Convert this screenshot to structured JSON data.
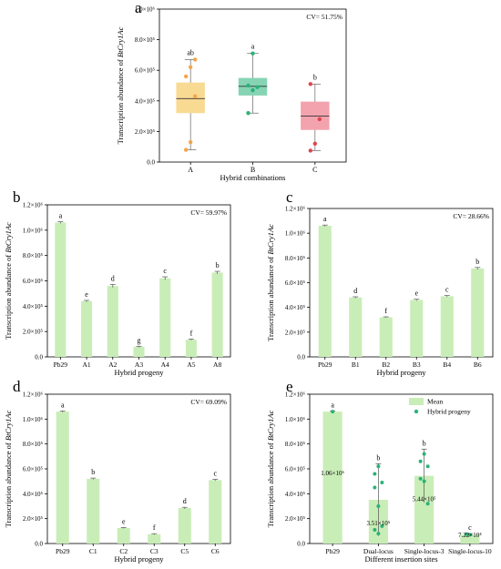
{
  "colors": {
    "bar_green": "#c9edb7",
    "dot_green": "#2bb279",
    "dot_orange": "#f3a54a",
    "box_orange": "#f9da93",
    "box_teal": "#86d4b4",
    "box_pink": "#f2a3ae",
    "dot_red": "#e0454f"
  },
  "chart_data": [
    {
      "panel": "a",
      "type": "box",
      "ylabel_prefix": "Transcription abundance of ",
      "ylabel_italic": "BtCry1Ac",
      "xlabel": "Hybrid combinations",
      "cv": "CV= 51.75%",
      "ylim": [
        0,
        1000000
      ],
      "yticks": [
        {
          "v": 0,
          "label": "0.0"
        },
        {
          "v": 200000,
          "label": "2.0×10⁵"
        },
        {
          "v": 400000,
          "label": "4.0×10⁵"
        },
        {
          "v": 600000,
          "label": "6.0×10⁵"
        },
        {
          "v": 800000,
          "label": "8.0×10⁵"
        },
        {
          "v": 1000000,
          "label": "1.0×10⁶"
        }
      ],
      "groups": [
        {
          "name": "A",
          "min": 80000,
          "q1": 320000,
          "median": 415000,
          "q3": 520000,
          "max": 670000,
          "letter": "ab",
          "points": [
            80000,
            130000,
            430000,
            560000,
            620000,
            670000
          ],
          "box_color": "#f9da93",
          "dot_color": "#f3a54a"
        },
        {
          "name": "B",
          "min": 320000,
          "q1": 435000,
          "median": 495000,
          "q3": 550000,
          "max": 710000,
          "letter": "a",
          "points": [
            320000,
            470000,
            490000,
            500000,
            710000
          ],
          "box_color": "#86d4b4",
          "dot_color": "#2bb279"
        },
        {
          "name": "C",
          "min": 75000,
          "q1": 210000,
          "median": 300000,
          "q3": 395000,
          "max": 510000,
          "letter": "b",
          "points": [
            75000,
            120000,
            280000,
            510000
          ],
          "box_color": "#f2a3ae",
          "dot_color": "#e0454f"
        }
      ]
    },
    {
      "panel": "b",
      "type": "bar",
      "ylabel_prefix": "Transcription abundance of ",
      "ylabel_italic": "BtCry1Ac",
      "xlabel": "Hybrid progeny",
      "cv": "CV= 59.97%",
      "ylim": [
        0,
        1200000
      ],
      "yticks": [
        {
          "v": 0,
          "label": "0.0"
        },
        {
          "v": 200000,
          "label": "2.0×10⁵"
        },
        {
          "v": 400000,
          "label": "4.0×10⁵"
        },
        {
          "v": 600000,
          "label": "6.0×10⁵"
        },
        {
          "v": 800000,
          "label": "8.0×10⁵"
        },
        {
          "v": 1000000,
          "label": "1.0×10⁶"
        },
        {
          "v": 1200000,
          "label": "1.2×10⁶"
        }
      ],
      "categories": [
        "Pb29",
        "A1",
        "A2",
        "A3",
        "A4",
        "A5",
        "A8"
      ],
      "values": [
        1060000,
        440000,
        560000,
        80000,
        620000,
        135000,
        665000
      ],
      "errors": [
        6000,
        6000,
        12000,
        4000,
        12000,
        5000,
        10000
      ],
      "letters": [
        "a",
        "e",
        "d",
        "g",
        "c",
        "f",
        "b"
      ]
    },
    {
      "panel": "c",
      "type": "bar",
      "ylabel_prefix": "Transcription abundance of ",
      "ylabel_italic": "BtCry1Ac",
      "xlabel": "Hybrid progeny",
      "cv": "CV= 28.66%",
      "ylim": [
        0,
        1200000
      ],
      "yticks": [
        {
          "v": 0,
          "label": "0.0"
        },
        {
          "v": 200000,
          "label": "2.0×10⁵"
        },
        {
          "v": 400000,
          "label": "4.0×10⁵"
        },
        {
          "v": 600000,
          "label": "6.0×10⁵"
        },
        {
          "v": 800000,
          "label": "8.0×10⁵"
        },
        {
          "v": 1000000,
          "label": "1.0×10⁶"
        },
        {
          "v": 1200000,
          "label": "1.2×10⁶"
        }
      ],
      "categories": [
        "Pb29",
        "B1",
        "B2",
        "B3",
        "B4",
        "B6"
      ],
      "values": [
        1060000,
        480000,
        320000,
        460000,
        490000,
        715000
      ],
      "errors": [
        6000,
        6000,
        4000,
        6000,
        6000,
        8000
      ],
      "letters": [
        "a",
        "d",
        "f",
        "e",
        "c",
        "b"
      ]
    },
    {
      "panel": "d",
      "type": "bar",
      "ylabel_prefix": "Transcription abundance of ",
      "ylabel_italic": "BtCry1Ac",
      "xlabel": "Hybrid progeny",
      "cv": "CV= 69.09%",
      "ylim": [
        0,
        1200000
      ],
      "yticks": [
        {
          "v": 0,
          "label": "0.0"
        },
        {
          "v": 200000,
          "label": "2.0×10⁵"
        },
        {
          "v": 400000,
          "label": "4.0×10⁵"
        },
        {
          "v": 600000,
          "label": "6.0×10⁵"
        },
        {
          "v": 800000,
          "label": "8.0×10⁵"
        },
        {
          "v": 1000000,
          "label": "1.0×10⁶"
        },
        {
          "v": 1200000,
          "label": "1.2×10⁶"
        }
      ],
      "categories": [
        "Pb29",
        "C1",
        "C2",
        "C3",
        "C5",
        "C6"
      ],
      "values": [
        1060000,
        520000,
        125000,
        75000,
        285000,
        510000
      ],
      "errors": [
        6000,
        6000,
        4000,
        4000,
        6000,
        6000
      ],
      "letters": [
        "a",
        "b",
        "e",
        "f",
        "d",
        "c"
      ]
    },
    {
      "panel": "e",
      "type": "bar",
      "ylabel_prefix": "Transcription abundance of ",
      "ylabel_italic": "BtCry1Ac",
      "xlabel": "Different insertion sites",
      "legend_position": "top-right",
      "legend": [
        {
          "name": "Mean",
          "kind": "bar"
        },
        {
          "name": "Hybrid progeny",
          "kind": "dot"
        }
      ],
      "ylim": [
        0,
        1200000
      ],
      "yticks": [
        {
          "v": 0,
          "label": "0.0"
        },
        {
          "v": 200000,
          "label": "2.0×10⁵"
        },
        {
          "v": 400000,
          "label": "4.0×10⁵"
        },
        {
          "v": 600000,
          "label": "6.0×10⁵"
        },
        {
          "v": 800000,
          "label": "8.0×10⁵"
        },
        {
          "v": 1000000,
          "label": "1.0×10⁶"
        },
        {
          "v": 1200000,
          "label": "1.2×10⁶"
        }
      ],
      "categories": [
        "Pb29",
        "Dual-locus",
        "Single-locus-3",
        "Single-locus-10"
      ],
      "values": [
        1060000,
        351000,
        544000,
        72200
      ],
      "errors": [
        6000,
        290000,
        215000,
        7000
      ],
      "letters": [
        "a",
        "b",
        "b",
        "c"
      ],
      "value_labels": [
        "1.06×10⁶",
        "3.51×10⁵",
        "5.44×10⁵",
        "7.22×10⁴"
      ],
      "points": [
        [
          1060000
        ],
        [
          560000,
          620000,
          490000,
          450000,
          300000,
          140000,
          110000,
          80000
        ],
        [
          660000,
          720000,
          620000,
          520000,
          500000,
          320000
        ],
        [
          75000,
          70000
        ]
      ]
    }
  ]
}
